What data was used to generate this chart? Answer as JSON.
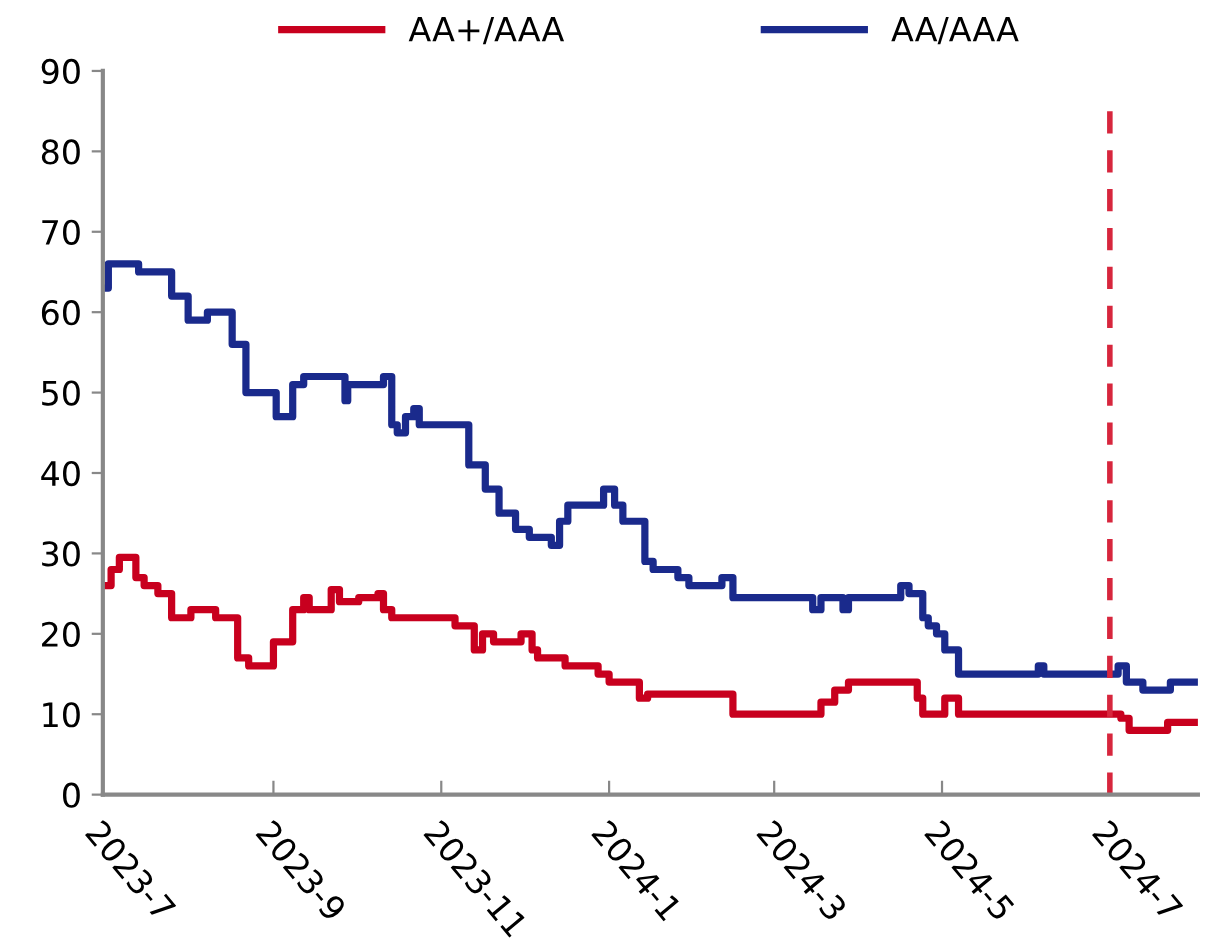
{
  "chart_data": {
    "type": "step",
    "series": [
      {
        "name": "AA+/AAA",
        "color": "#c8001e",
        "x": [
          "2023-07-01",
          "2023-07-04",
          "2023-07-07",
          "2023-07-10",
          "2023-07-13",
          "2023-07-16",
          "2023-07-21",
          "2023-07-26",
          "2023-07-30",
          "2023-08-02",
          "2023-08-08",
          "2023-08-11",
          "2023-08-15",
          "2023-08-19",
          "2023-08-23",
          "2023-08-29",
          "2023-09-01",
          "2023-09-05",
          "2023-09-08",
          "2023-09-12",
          "2023-09-14",
          "2023-09-20",
          "2023-09-22",
          "2023-09-25",
          "2023-10-02",
          "2023-10-09",
          "2023-10-11",
          "2023-10-14",
          "2023-11-04",
          "2023-11-06",
          "2023-11-11",
          "2023-11-13",
          "2023-11-16",
          "2023-11-20",
          "2023-11-28",
          "2023-11-30",
          "2023-12-04",
          "2023-12-06",
          "2023-12-14",
          "2023-12-16",
          "2023-12-26",
          "2023-12-28",
          "2024-01-01",
          "2024-01-08",
          "2024-01-12",
          "2024-01-15",
          "2024-02-10",
          "2024-02-15",
          "2024-03-13",
          "2024-03-18",
          "2024-03-23",
          "2024-03-28",
          "2024-04-19",
          "2024-04-22",
          "2024-04-24",
          "2024-04-29",
          "2024-05-02",
          "2024-05-05",
          "2024-05-07",
          "2024-07-01",
          "2024-07-05",
          "2024-07-08",
          "2024-07-18",
          "2024-07-22",
          "2024-08-01"
        ],
        "values": [
          26,
          28,
          29.5,
          29.5,
          27,
          26,
          25,
          22,
          22,
          23,
          23,
          22,
          22,
          17,
          16,
          16,
          19,
          19,
          23,
          24.5,
          23,
          23,
          25.5,
          24,
          24.5,
          25,
          23,
          22,
          22,
          21,
          21,
          18,
          20,
          19,
          19,
          20,
          18,
          17,
          17,
          16,
          16,
          15,
          14,
          14,
          12,
          12.5,
          12.5,
          10,
          10,
          11.5,
          13,
          14,
          14,
          12,
          10,
          10,
          12,
          12,
          10,
          10,
          9.5,
          8,
          8,
          9,
          9
        ]
      },
      {
        "name": "AA/AAA",
        "color": "#1a2a8c",
        "x": [
          "2023-07-01",
          "2023-07-03",
          "2023-07-13",
          "2023-07-14",
          "2023-07-25",
          "2023-07-26",
          "2023-07-29",
          "2023-08-01",
          "2023-08-05",
          "2023-08-08",
          "2023-08-12",
          "2023-08-17",
          "2023-08-22",
          "2023-08-30",
          "2023-09-02",
          "2023-09-05",
          "2023-09-08",
          "2023-09-12",
          "2023-09-14",
          "2023-09-26",
          "2023-09-27",
          "2023-09-28",
          "2023-10-09",
          "2023-10-11",
          "2023-10-14",
          "2023-10-16",
          "2023-10-19",
          "2023-10-22",
          "2023-10-24",
          "2023-11-07",
          "2023-11-11",
          "2023-11-17",
          "2023-11-22",
          "2023-11-28",
          "2023-12-03",
          "2023-12-08",
          "2023-12-11",
          "2023-12-14",
          "2023-12-17",
          "2023-12-28",
          "2023-12-30",
          "2024-01-03",
          "2024-01-06",
          "2024-01-10",
          "2024-01-14",
          "2024-01-17",
          "2024-01-20",
          "2024-01-26",
          "2024-01-30",
          "2024-02-02",
          "2024-02-11",
          "2024-02-15",
          "2024-03-10",
          "2024-03-15",
          "2024-03-18",
          "2024-03-24",
          "2024-03-26",
          "2024-03-28",
          "2024-04-13",
          "2024-04-16",
          "2024-04-19",
          "2024-04-24",
          "2024-04-26",
          "2024-04-29",
          "2024-05-02",
          "2024-05-07",
          "2024-05-19",
          "2024-06-05",
          "2024-06-07",
          "2024-07-01",
          "2024-07-04",
          "2024-07-07",
          "2024-07-13",
          "2024-07-20",
          "2024-07-23",
          "2024-08-01"
        ],
        "values": [
          63,
          66,
          66,
          65,
          65,
          62,
          62,
          59,
          59,
          60,
          60,
          56,
          50,
          50,
          47,
          47,
          51,
          52,
          52,
          52,
          49,
          51,
          51,
          52,
          46,
          45,
          47,
          48,
          46,
          46,
          41,
          38,
          35,
          33,
          32,
          32,
          31,
          34,
          36,
          36,
          38,
          36,
          34,
          34,
          29,
          28,
          28,
          27,
          26,
          26,
          27,
          24.5,
          24.5,
          23,
          24.5,
          24.5,
          23,
          24.5,
          24.5,
          26,
          25,
          22,
          21,
          20,
          18,
          15,
          15,
          16,
          15,
          15,
          16,
          14,
          13,
          13,
          14,
          14
        ]
      }
    ],
    "xlim": [
      "2023-07-01",
      "2024-08-02"
    ],
    "xticks": [
      {
        "value": "2023-07-01",
        "label": "2023-7"
      },
      {
        "value": "2023-09-01",
        "label": "2023-9"
      },
      {
        "value": "2023-11-01",
        "label": "2023-11"
      },
      {
        "value": "2024-01-01",
        "label": "2024-1"
      },
      {
        "value": "2024-03-01",
        "label": "2024-3"
      },
      {
        "value": "2024-05-01",
        "label": "2024-5"
      },
      {
        "value": "2024-07-01",
        "label": "2024-7"
      }
    ],
    "ylim": [
      0,
      90
    ],
    "yticks": [
      0,
      10,
      20,
      30,
      40,
      50,
      60,
      70,
      80,
      90
    ],
    "ref_lines": [
      {
        "axis": "x",
        "value": "2024-07-01",
        "color": "#d7263d",
        "line_style": "dashed"
      }
    ],
    "legend": "top",
    "grid": false
  }
}
